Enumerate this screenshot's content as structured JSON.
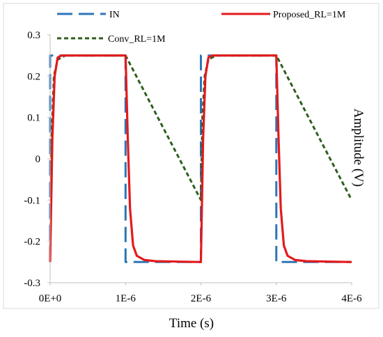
{
  "chart_data": {
    "type": "line",
    "xlabel": "Time (s)",
    "ylabel": "Amplitude (V)",
    "xlim": [
      0,
      4e-06
    ],
    "ylim": [
      -0.3,
      0.3
    ],
    "x_ticks": [
      0,
      1e-06,
      2e-06,
      3e-06,
      4e-06
    ],
    "x_tick_labels": [
      "0E+0",
      "1E-6",
      "2E-6",
      "3E-6",
      "4E-6"
    ],
    "y_ticks": [
      -0.3,
      -0.2,
      -0.1,
      0,
      0.1,
      0.2,
      0.3
    ],
    "y_tick_labels": [
      "-0.3",
      "-0.2",
      "-0.1",
      "0",
      "0.1",
      "0.2",
      "0.3"
    ],
    "grid": false,
    "legend_position": "top",
    "series": [
      {
        "name": "IN",
        "color": "#2e75b6",
        "style": "long-dash",
        "points": [
          [
            0,
            -0.25
          ],
          [
            0,
            0.25
          ],
          [
            1e-06,
            0.25
          ],
          [
            1e-06,
            -0.25
          ],
          [
            2e-06,
            -0.25
          ],
          [
            2e-06,
            0.25
          ],
          [
            3e-06,
            0.25
          ],
          [
            3e-06,
            -0.25
          ],
          [
            4e-06,
            -0.25
          ]
        ]
      },
      {
        "name": "Proposed_RL=1M",
        "color": "#e31a1c",
        "style": "solid",
        "points": [
          [
            0,
            -0.25
          ],
          [
            3e-08,
            0.05
          ],
          [
            6e-08,
            0.2
          ],
          [
            1e-07,
            0.245
          ],
          [
            1.5e-07,
            0.25
          ],
          [
            1e-06,
            0.25
          ],
          [
            1.03e-06,
            0.05
          ],
          [
            1.06e-06,
            -0.12
          ],
          [
            1.1e-06,
            -0.21
          ],
          [
            1.15e-06,
            -0.235
          ],
          [
            1.25e-06,
            -0.245
          ],
          [
            1.4e-06,
            -0.248
          ],
          [
            2e-06,
            -0.25
          ],
          [
            2.03e-06,
            0.05
          ],
          [
            2.06e-06,
            0.2
          ],
          [
            2.1e-06,
            0.245
          ],
          [
            2.15e-06,
            0.25
          ],
          [
            3e-06,
            0.25
          ],
          [
            3.03e-06,
            0.05
          ],
          [
            3.06e-06,
            -0.12
          ],
          [
            3.1e-06,
            -0.21
          ],
          [
            3.15e-06,
            -0.235
          ],
          [
            3.25e-06,
            -0.245
          ],
          [
            3.4e-06,
            -0.248
          ],
          [
            4e-06,
            -0.25
          ]
        ]
      },
      {
        "name": "Conv_RL=1M",
        "color": "#2e5e1e",
        "style": "short-dash",
        "points": [
          [
            0,
            -0.25
          ],
          [
            2e-08,
            0.05
          ],
          [
            5e-08,
            0.2
          ],
          [
            1e-07,
            0.24
          ],
          [
            2e-07,
            0.25
          ],
          [
            1e-06,
            0.25
          ],
          [
            1.2e-06,
            0.18
          ],
          [
            1.6e-06,
            0.04
          ],
          [
            2e-06,
            -0.1
          ],
          [
            2.02e-06,
            0.1
          ],
          [
            2.05e-06,
            0.2
          ],
          [
            2.1e-06,
            0.24
          ],
          [
            2.2e-06,
            0.25
          ],
          [
            3e-06,
            0.25
          ],
          [
            3.2e-06,
            0.18
          ],
          [
            3.6e-06,
            0.04
          ],
          [
            4e-06,
            -0.1
          ]
        ]
      }
    ]
  }
}
